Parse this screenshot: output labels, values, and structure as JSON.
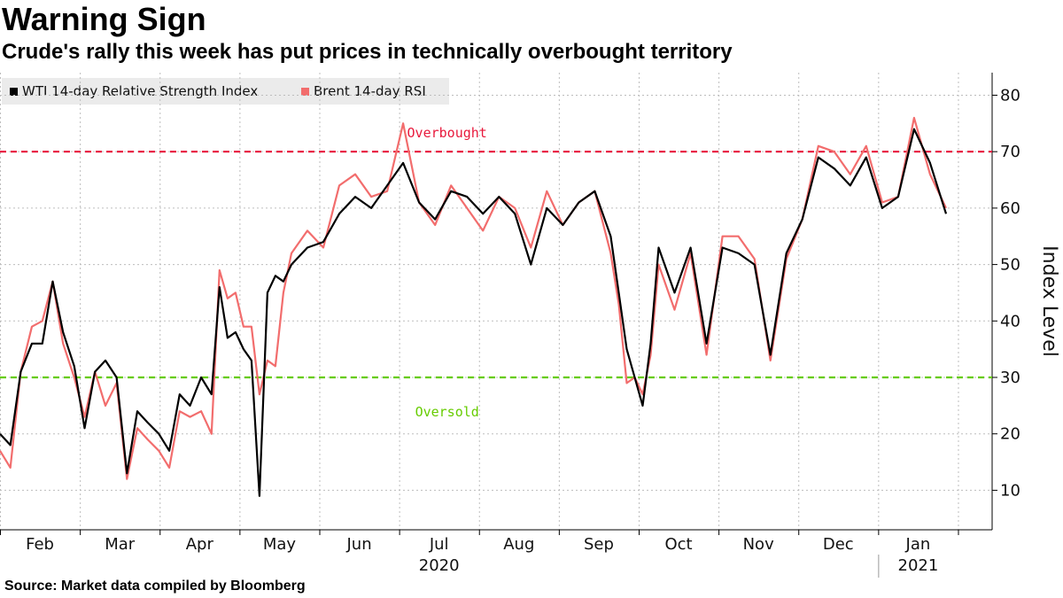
{
  "chart_data": {
    "type": "line",
    "title": "Warning Sign",
    "subtitle": "Crude's rally this week has put prices in technically overbought territory",
    "ylabel": "Index Level",
    "xlabel": "",
    "ylim": [
      3,
      84
    ],
    "yticks": [
      10,
      20,
      30,
      40,
      50,
      60,
      70,
      80
    ],
    "y_axis_position": "right",
    "grid": true,
    "legend_position": "top-left",
    "month_labels": [
      "Feb",
      "Mar",
      "Apr",
      "May",
      "Jun",
      "Jul",
      "Aug",
      "Sep",
      "Oct",
      "Nov",
      "Dec",
      "Jan"
    ],
    "year_labels": [
      {
        "label": "2020",
        "month_index": 5.5
      },
      {
        "label": "2021",
        "month_index": 11.5
      }
    ],
    "reference_lines": [
      {
        "name": "Overbought",
        "value": 70,
        "color": "#e8193c",
        "label_month_index": 5.6
      },
      {
        "name": "Oversold",
        "value": 30,
        "color": "#66cc00",
        "label_month_index": 5.6
      }
    ],
    "x_unit": "months since Feb 1 2020",
    "series": [
      {
        "name": "WTI 14-day Relative Strength Index",
        "color": "#000000",
        "x": [
          0,
          0.15,
          0.3,
          0.45,
          0.6,
          0.75,
          0.9,
          1.05,
          1.2,
          1.35,
          1.5,
          1.65,
          1.8,
          1.95,
          2.1,
          2.25,
          2.4,
          2.55,
          2.7,
          2.85,
          3.0,
          3.1,
          3.2,
          3.3,
          3.4,
          3.5,
          3.6,
          3.7,
          3.8,
          3.9,
          4.0,
          4.2,
          4.4,
          4.6,
          4.8,
          5.0,
          5.2,
          5.4,
          5.6,
          5.8,
          6.0,
          6.2,
          6.4,
          6.6,
          6.8,
          7.0,
          7.2,
          7.4,
          7.6,
          7.8,
          8.0,
          8.1,
          8.2,
          8.3,
          8.4,
          8.5,
          8.6,
          8.8,
          9.0,
          9.2,
          9.4,
          9.6,
          9.8,
          10.0,
          10.2,
          10.4,
          10.6,
          10.8,
          11.0,
          11.2,
          11.4,
          11.6,
          11.8,
          12.0,
          12.2
        ],
        "values": [
          20,
          18,
          31,
          36,
          36,
          47,
          38,
          32,
          21,
          31,
          33,
          30,
          13,
          24,
          22,
          20,
          17,
          27,
          25,
          30,
          27,
          46,
          37,
          38,
          35,
          33,
          9,
          45,
          48,
          47,
          50,
          53,
          54,
          59,
          62,
          60,
          64,
          68,
          61,
          58,
          63,
          62,
          59,
          62,
          59,
          50,
          60,
          57,
          61,
          63,
          55,
          45,
          35,
          30,
          25,
          36,
          53,
          45,
          53,
          36,
          53,
          52,
          50,
          34,
          52,
          58,
          69,
          67,
          64,
          69,
          60,
          62,
          74,
          68,
          59
        ],
        "xmap": [
          0,
          0.13,
          0.26,
          0.4,
          0.53,
          0.66,
          0.79,
          0.93,
          1.06,
          1.19,
          1.32,
          1.46,
          1.59,
          1.72,
          1.85,
          1.99,
          2.12,
          2.25,
          2.38,
          2.52,
          2.65,
          2.75,
          2.85,
          2.95,
          3.05,
          3.15,
          3.25,
          3.35,
          3.45,
          3.55,
          3.65,
          3.85,
          4.05,
          4.25,
          4.45,
          4.65,
          4.85,
          5.05,
          5.25,
          5.45,
          5.65,
          5.85,
          6.05,
          6.25,
          6.45,
          6.65,
          6.85,
          7.05,
          7.25,
          7.45,
          7.65,
          7.75,
          7.85,
          7.95,
          8.05,
          8.15,
          8.25,
          8.45,
          8.65,
          8.85,
          9.05,
          9.25,
          9.45,
          9.65,
          9.85,
          10.05,
          10.25,
          10.45,
          10.65,
          10.85,
          11.05,
          11.25,
          11.45,
          11.65,
          11.85
        ]
      },
      {
        "name": "Brent 14-day RSI",
        "color": "#f26d6d",
        "x": [
          0,
          0.15,
          0.3,
          0.45,
          0.6,
          0.75,
          0.9,
          1.05,
          1.2,
          1.35,
          1.5,
          1.65,
          1.8,
          1.95,
          2.1,
          2.25,
          2.4,
          2.55,
          2.7,
          2.85,
          3.0,
          3.1,
          3.2,
          3.3,
          3.4,
          3.5,
          3.6,
          3.7,
          3.8,
          3.9,
          4.0,
          4.2,
          4.4,
          4.6,
          4.8,
          5.0,
          5.2,
          5.4,
          5.6,
          5.8,
          6.0,
          6.2,
          6.4,
          6.6,
          6.8,
          7.0,
          7.2,
          7.4,
          7.6,
          7.8,
          8.0,
          8.1,
          8.2,
          8.3,
          8.4,
          8.5,
          8.6,
          8.8,
          9.0,
          9.2,
          9.4,
          9.6,
          9.8,
          10.0,
          10.2,
          10.4,
          10.6,
          10.8,
          11.0,
          11.2,
          11.4,
          11.6,
          11.8,
          12.0,
          12.2
        ],
        "values": [
          17,
          14,
          31,
          39,
          40,
          47,
          36,
          30,
          23,
          31,
          25,
          29,
          12,
          21,
          19,
          17,
          14,
          24,
          23,
          24,
          20,
          49,
          44,
          45,
          39,
          39,
          27,
          33,
          32,
          45,
          52,
          56,
          53,
          64,
          66,
          62,
          63,
          75,
          61,
          57,
          64,
          60,
          56,
          62,
          60,
          53,
          63,
          57,
          61,
          63,
          52,
          43,
          29,
          30,
          27,
          34,
          50,
          42,
          52,
          34,
          55,
          55,
          51,
          33,
          51,
          58,
          71,
          70,
          66,
          71,
          61,
          62,
          76,
          66,
          60
        ],
        "xmap": [
          0,
          0.13,
          0.26,
          0.4,
          0.53,
          0.66,
          0.79,
          0.93,
          1.06,
          1.19,
          1.32,
          1.46,
          1.59,
          1.72,
          1.85,
          1.99,
          2.12,
          2.25,
          2.38,
          2.52,
          2.65,
          2.75,
          2.85,
          2.95,
          3.05,
          3.15,
          3.25,
          3.35,
          3.45,
          3.55,
          3.65,
          3.85,
          4.05,
          4.25,
          4.45,
          4.65,
          4.85,
          5.05,
          5.25,
          5.45,
          5.65,
          5.85,
          6.05,
          6.25,
          6.45,
          6.65,
          6.85,
          7.05,
          7.25,
          7.45,
          7.65,
          7.75,
          7.85,
          7.95,
          8.05,
          8.15,
          8.25,
          8.45,
          8.65,
          8.85,
          9.05,
          9.25,
          9.45,
          9.65,
          9.85,
          10.05,
          10.25,
          10.45,
          10.65,
          10.85,
          11.05,
          11.25,
          11.45,
          11.65,
          11.85
        ]
      }
    ]
  },
  "source": "Source: Market data compiled by Bloomberg",
  "colors": {
    "plot_grid": "#bdbdbd",
    "axis": "#000000",
    "legend_bg": "#ebebeb"
  }
}
